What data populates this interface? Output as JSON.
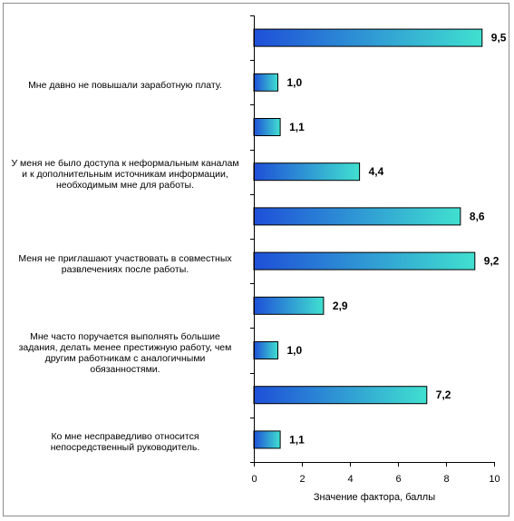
{
  "chart_data": {
    "type": "bar",
    "orientation": "horizontal",
    "categories": [
      "",
      "Мне давно не повышали заработную плату.",
      "",
      "У меня не было доступа к неформальным каналам и к дополнительным источникам информации, необходимым мне для работы.",
      "",
      "Меня не приглашают участвовать в совместных развлечениях после работы.",
      "",
      "Мне часто поручается выполнять большие задания, делать менее престижную работу, чем другим работникам с аналогичными обязанностями.",
      "",
      "Ко мне несправедливо относится непосредственный руководитель."
    ],
    "category_lines": [
      [],
      [
        "Мне давно не повышали заработную плату."
      ],
      [],
      [
        "У меня не было доступа к неформальным каналам",
        "и к дополнительным источникам информации,",
        "необходимым мне для работы."
      ],
      [],
      [
        "Меня не приглашают участвовать в совместных",
        "развлечениях после работы."
      ],
      [],
      [
        "Мне часто поручается выполнять большие",
        "задания, делать менее престижную работу, чем",
        "другим работникам с аналогичными",
        "обязанностями."
      ],
      [],
      [
        "Ко мне несправедливо относится",
        "непосредственный руководитель."
      ]
    ],
    "values": [
      9.5,
      1.0,
      1.1,
      4.4,
      8.6,
      9.2,
      2.9,
      1.0,
      7.2,
      1.1
    ],
    "value_labels": [
      "9,5",
      "1,0",
      "1,1",
      "4,4",
      "8,6",
      "9,2",
      "2,9",
      "1,0",
      "7,2",
      "1,1"
    ],
    "xlim": [
      0,
      10
    ],
    "xticks": [
      0,
      2,
      4,
      6,
      8,
      10
    ],
    "xtick_labels": [
      "0",
      "2",
      "4",
      "6",
      "8",
      "10"
    ],
    "xlabel": "Значение фактора, баллы",
    "ylabel": "",
    "title": "",
    "grid": false,
    "legend": "none",
    "bar_gradient": [
      "#1e4fd8",
      "#40e0d0"
    ]
  }
}
